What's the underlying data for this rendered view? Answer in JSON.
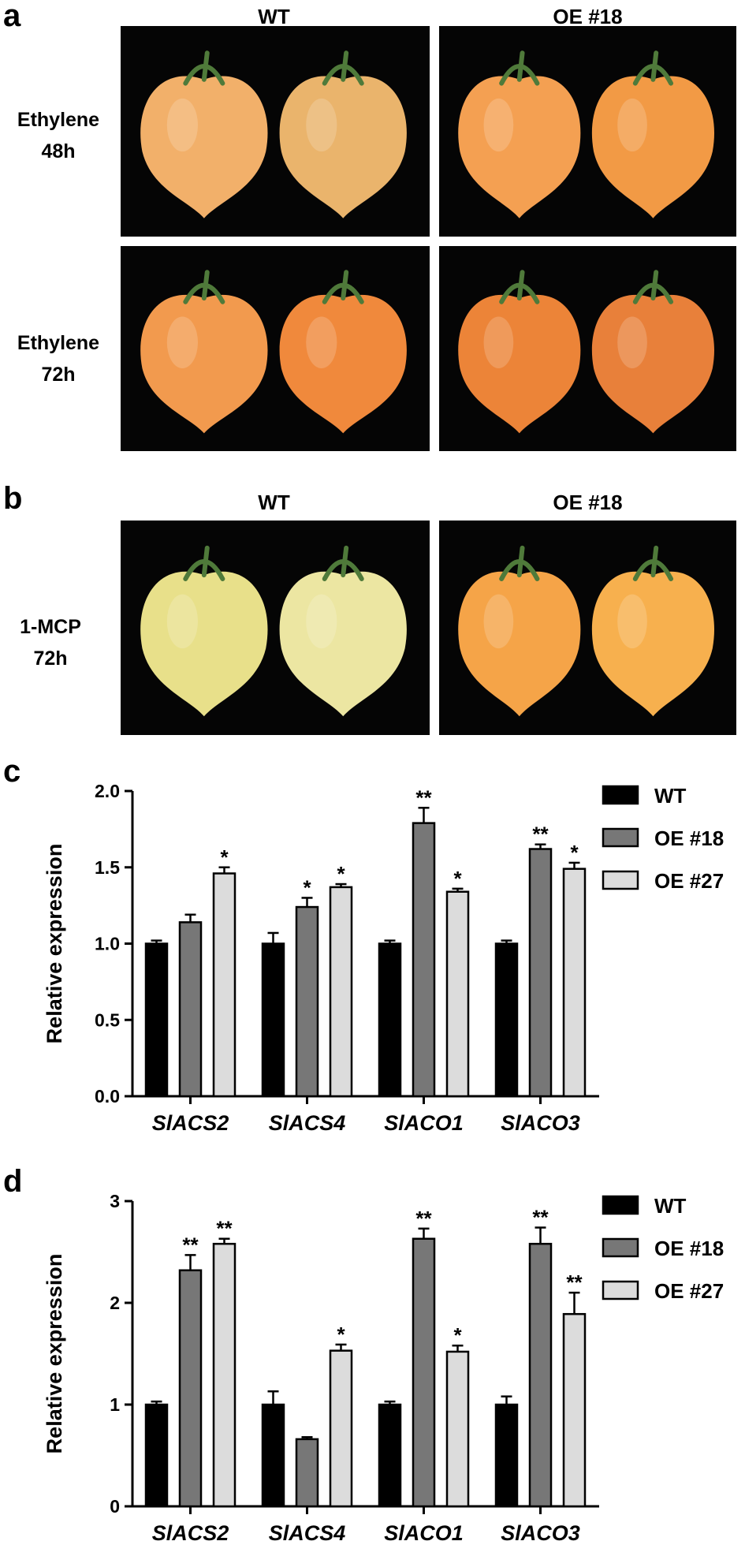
{
  "panel_a": {
    "letter": "a",
    "col_labels": [
      "WT",
      "OE #18"
    ],
    "rows": [
      {
        "line1": "Ethylene",
        "line2": "48h",
        "fruit_colors": [
          "#f2b06a",
          "#eab46c",
          "#f4a052",
          "#f29a45"
        ]
      },
      {
        "line1": "Ethylene",
        "line2": "72h",
        "fruit_colors": [
          "#f29a4e",
          "#f0893c",
          "#ec8438",
          "#e8803a"
        ]
      }
    ]
  },
  "panel_b": {
    "letter": "b",
    "col_labels": [
      "WT",
      "OE #18"
    ],
    "rows": [
      {
        "line1": "1-MCP",
        "line2": "72h",
        "fruit_colors": [
          "#e8e08a",
          "#ece6a2",
          "#f5a448",
          "#f7b04e"
        ]
      }
    ]
  },
  "legend": [
    {
      "name": "WT",
      "color": "#000000"
    },
    {
      "name": "OE #18",
      "color": "#777777"
    },
    {
      "name": "OE #27",
      "color": "#dcdcdc"
    }
  ],
  "chart_data": [
    {
      "panel": "c",
      "type": "bar",
      "ylabel": "Relative expression",
      "ylim": [
        0,
        2.0
      ],
      "yticks": [
        "0.0",
        "0.5",
        "1.0",
        "1.5",
        "2.0"
      ],
      "categories": [
        "SlACS2",
        "SlACS4",
        "SlACO1",
        "SlACO3"
      ],
      "series": [
        {
          "name": "WT",
          "values": [
            1.0,
            1.0,
            1.0,
            1.0
          ],
          "errors": [
            0.02,
            0.07,
            0.02,
            0.02
          ],
          "sig": [
            "",
            "",
            "",
            ""
          ]
        },
        {
          "name": "OE #18",
          "values": [
            1.14,
            1.24,
            1.79,
            1.62
          ],
          "errors": [
            0.05,
            0.06,
            0.1,
            0.03
          ],
          "sig": [
            "",
            "*",
            "**",
            "**"
          ]
        },
        {
          "name": "OE #27",
          "values": [
            1.46,
            1.37,
            1.34,
            1.49
          ],
          "errors": [
            0.04,
            0.02,
            0.02,
            0.04
          ],
          "sig": [
            "*",
            "*",
            "*",
            "*"
          ]
        }
      ]
    },
    {
      "panel": "d",
      "type": "bar",
      "ylabel": "Relative expression",
      "ylim": [
        0,
        3
      ],
      "yticks": [
        "0",
        "1",
        "2",
        "3"
      ],
      "categories": [
        "SlACS2",
        "SlACS4",
        "SlACO1",
        "SlACO3"
      ],
      "series": [
        {
          "name": "WT",
          "values": [
            1.0,
            1.0,
            1.0,
            1.0
          ],
          "errors": [
            0.03,
            0.13,
            0.03,
            0.08
          ],
          "sig": [
            "",
            "",
            "",
            ""
          ]
        },
        {
          "name": "OE #18",
          "values": [
            2.32,
            0.66,
            2.63,
            2.58
          ],
          "errors": [
            0.15,
            0.02,
            0.1,
            0.16
          ],
          "sig": [
            "**",
            "",
            "**",
            "**"
          ]
        },
        {
          "name": "OE #27",
          "values": [
            2.58,
            1.53,
            1.52,
            1.89
          ],
          "errors": [
            0.05,
            0.06,
            0.06,
            0.21
          ],
          "sig": [
            "**",
            "*",
            "*",
            "**"
          ]
        }
      ]
    }
  ],
  "panel_c_letter": "c",
  "panel_d_letter": "d"
}
